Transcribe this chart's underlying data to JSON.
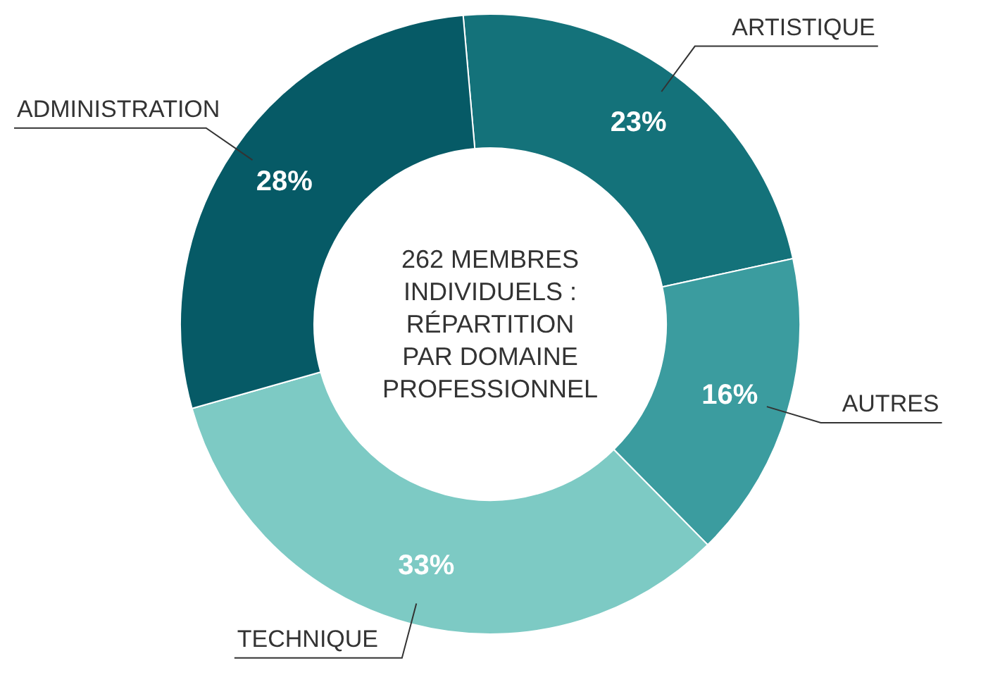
{
  "chart_data": {
    "type": "donut",
    "title": "262 MEMBRES INDIVIDUELS : RÉPARTITION PAR DOMAINE PROFESSIONNEL",
    "categories": [
      "ARTISTIQUE",
      "AUTRES",
      "TECHNIQUE",
      "ADMINISTRATION"
    ],
    "values": [
      23,
      16,
      33,
      28
    ],
    "value_labels": [
      "23%",
      "16%",
      "33%",
      "28%"
    ],
    "colors": [
      "#14727a",
      "#3b9c9f",
      "#7dcac4",
      "#065a66"
    ]
  }
}
